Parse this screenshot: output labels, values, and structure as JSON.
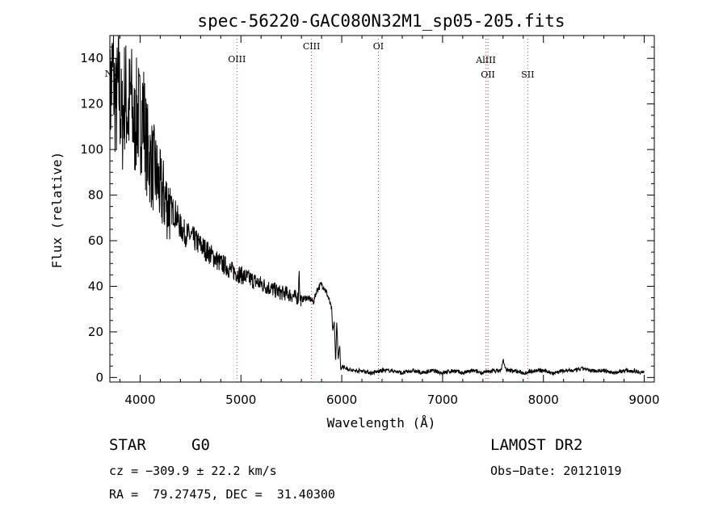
{
  "chart_data": {
    "type": "line",
    "title": "spec-56220-GAC080N32M1_sp05-205.fits",
    "xlabel": "Wavelength (Å)",
    "ylabel": "Flux (relative)",
    "xlim": [
      3700,
      9100
    ],
    "ylim": [
      -2,
      150
    ],
    "x_ticks": [
      4000,
      5000,
      6000,
      7000,
      8000,
      9000
    ],
    "y_ticks": [
      0,
      20,
      40,
      60,
      80,
      100,
      120,
      140
    ],
    "grid": false,
    "series": [
      {
        "x": [
          3700,
          3730,
          3760,
          3790,
          3820,
          3850,
          3880,
          3910,
          3940,
          3970,
          4000,
          4030,
          4060,
          4100,
          4150,
          4200,
          4250,
          4300,
          4350,
          4400,
          4450,
          4500,
          4550,
          4600,
          4650,
          4700,
          4750,
          4800,
          4850,
          4900,
          4950,
          5000,
          5050,
          5100,
          5150,
          5200,
          5250,
          5300,
          5350,
          5400,
          5450,
          5500,
          5550,
          5570,
          5577,
          5584,
          5600,
          5650,
          5700,
          5720,
          5750,
          5780,
          5800,
          5820,
          5840,
          5860,
          5880,
          5900,
          5910,
          5925,
          5940,
          5950,
          5965,
          5980,
          5990,
          6000,
          6050,
          6100,
          6200,
          6300,
          6400,
          6500,
          6600,
          6700,
          6800,
          6900,
          7000,
          7100,
          7200,
          7300,
          7400,
          7500,
          7580,
          7600,
          7620,
          7650,
          7700,
          7800,
          7900,
          8000,
          8100,
          8200,
          8300,
          8400,
          8450,
          8500,
          8600,
          8700,
          8800,
          8900,
          9000
        ],
        "y": [
          120,
          135,
          118,
          128,
          110,
          126,
          115,
          124,
          108,
          117,
          112,
          118,
          102,
          95,
          90,
          82,
          78,
          74,
          72,
          66,
          63,
          62,
          60,
          58,
          56,
          54,
          52,
          50,
          49,
          47,
          46,
          45,
          44,
          43,
          42,
          41,
          40,
          39,
          38,
          37,
          37,
          36,
          35,
          35,
          51,
          35,
          34,
          35,
          34,
          33,
          38,
          40,
          41,
          40,
          38,
          36,
          33,
          30,
          20,
          25,
          6,
          25,
          8,
          14,
          3,
          5,
          4,
          3,
          3,
          2,
          3,
          3,
          2,
          3,
          2,
          3,
          2,
          3,
          2,
          3,
          2,
          3,
          3,
          8,
          4,
          3,
          3,
          2,
          3,
          3,
          2,
          3,
          3,
          4,
          3,
          3,
          3,
          2,
          3,
          3,
          2
        ]
      }
    ],
    "spectral_lines": [
      {
        "label": "NV",
        "x": 3720
      },
      {
        "label": "OIII",
        "x": 4960
      },
      {
        "label": "CIII",
        "x": 5700
      },
      {
        "label": "OI",
        "x": 6363
      },
      {
        "label": "AlIII",
        "x": 7430
      },
      {
        "label": "OII",
        "x": 7450
      },
      {
        "label": "SII",
        "x": 7845
      }
    ]
  },
  "info": {
    "class_label": "STAR",
    "subclass_label": "G0",
    "survey": "LAMOST DR2",
    "cz": "cz = −309.9 ± 22.2 km/s",
    "obs_date": "Obs−Date: 20121019",
    "radec": "RA =  79.27475, DEC =  31.40300"
  }
}
